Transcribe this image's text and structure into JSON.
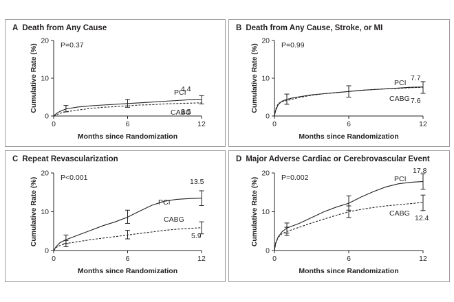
{
  "chart_data": [
    {
      "panel": "A",
      "type": "line",
      "title": "Death from Any Cause",
      "p_value": "P=0.37",
      "xlabel": "Months since Randomization",
      "ylabel": "Cumulative Rate (%)",
      "xlim": [
        0,
        12
      ],
      "ylim": [
        0,
        20
      ],
      "xticks": [
        "0",
        "6",
        "12"
      ],
      "yticks": [
        "0",
        "10",
        "20"
      ],
      "series": [
        {
          "name": "PCI",
          "style": "solid",
          "end_label": "4.4",
          "x": [
            0,
            0.2,
            0.5,
            1,
            2,
            3,
            4,
            5,
            6,
            7,
            8,
            9,
            10,
            11,
            12
          ],
          "y": [
            0,
            0.6,
            1.2,
            1.9,
            2.4,
            2.7,
            2.9,
            3.1,
            3.3,
            3.5,
            3.7,
            3.9,
            4.1,
            4.3,
            4.4
          ],
          "error_bars": [
            {
              "x": 1,
              "low": 1.1,
              "high": 2.8
            },
            {
              "x": 6,
              "low": 2.3,
              "high": 4.4
            },
            {
              "x": 12,
              "low": 3.2,
              "high": 5.4
            }
          ]
        },
        {
          "name": "CABG",
          "style": "dashed",
          "end_label": "3.5",
          "x": [
            0,
            0.2,
            0.5,
            1,
            2,
            3,
            4,
            5,
            6,
            7,
            8,
            9,
            10,
            11,
            12
          ],
          "y": [
            0,
            0.3,
            0.7,
            1.1,
            1.6,
            2.0,
            2.3,
            2.5,
            2.7,
            2.9,
            3.0,
            3.2,
            3.3,
            3.4,
            3.5
          ],
          "error_bars": []
        }
      ]
    },
    {
      "panel": "B",
      "type": "line",
      "title": "Death from Any Cause, Stroke, or MI",
      "p_value": "P=0.99",
      "xlabel": "Months since Randomization",
      "ylabel": "Cumulative Rate (%)",
      "xlim": [
        0,
        12
      ],
      "ylim": [
        0,
        20
      ],
      "xticks": [
        "0",
        "6",
        "12"
      ],
      "yticks": [
        "0",
        "10",
        "20"
      ],
      "series": [
        {
          "name": "PCI",
          "style": "solid",
          "end_label": "7.7",
          "x": [
            0,
            0.1,
            0.3,
            0.6,
            1,
            1.5,
            2,
            3,
            4,
            5,
            6,
            7,
            8,
            9,
            10,
            11,
            12
          ],
          "y": [
            0,
            1.5,
            3.0,
            3.9,
            4.4,
            4.8,
            5.1,
            5.6,
            5.9,
            6.2,
            6.5,
            6.8,
            7.0,
            7.2,
            7.4,
            7.6,
            7.7
          ],
          "error_bars": [
            {
              "x": 1,
              "low": 3.1,
              "high": 5.8
            },
            {
              "x": 6,
              "low": 5.0,
              "high": 8.0
            },
            {
              "x": 12,
              "low": 6.0,
              "high": 9.1
            }
          ]
        },
        {
          "name": "CABG",
          "style": "dashed",
          "end_label": "7.6",
          "x": [
            0,
            0.1,
            0.3,
            0.6,
            1,
            1.5,
            2,
            3,
            4,
            5,
            6,
            7,
            8,
            9,
            10,
            11,
            12
          ],
          "y": [
            0,
            1.8,
            3.3,
            3.8,
            4.1,
            4.5,
            4.9,
            5.5,
            5.9,
            6.2,
            6.5,
            6.8,
            7.0,
            7.2,
            7.3,
            7.5,
            7.6
          ],
          "error_bars": []
        }
      ]
    },
    {
      "panel": "C",
      "type": "line",
      "title": "Repeat Revascularization",
      "p_value": "P<0.001",
      "xlabel": "Months since Randomization",
      "ylabel": "Cumulative Rate (%)",
      "xlim": [
        0,
        12
      ],
      "ylim": [
        0,
        20
      ],
      "xticks": [
        "0",
        "6",
        "12"
      ],
      "yticks": [
        "0",
        "10",
        "20"
      ],
      "series": [
        {
          "name": "PCI",
          "style": "solid",
          "end_label": "13.5",
          "x": [
            0,
            0.2,
            0.5,
            1,
            2,
            3,
            4,
            5,
            6,
            7,
            8,
            9,
            10,
            11,
            12
          ],
          "y": [
            0,
            1.0,
            2.0,
            2.8,
            4.0,
            5.2,
            6.4,
            7.4,
            8.6,
            10.2,
            11.7,
            12.7,
            13.2,
            13.4,
            13.5
          ],
          "error_bars": [
            {
              "x": 1,
              "low": 1.8,
              "high": 4.0
            },
            {
              "x": 6,
              "low": 7.0,
              "high": 10.4
            },
            {
              "x": 12,
              "low": 11.6,
              "high": 15.4
            }
          ]
        },
        {
          "name": "CABG",
          "style": "dashed",
          "end_label": "5.9",
          "x": [
            0,
            0.2,
            0.5,
            1,
            2,
            3,
            4,
            5,
            6,
            7,
            8,
            9,
            10,
            11,
            12
          ],
          "y": [
            0,
            0.8,
            1.3,
            1.8,
            2.3,
            2.8,
            3.2,
            3.6,
            4.0,
            4.4,
            4.8,
            5.2,
            5.5,
            5.7,
            5.9
          ],
          "error_bars": [
            {
              "x": 1,
              "low": 1.0,
              "high": 2.6
            },
            {
              "x": 6,
              "low": 3.0,
              "high": 5.2
            },
            {
              "x": 12,
              "low": 4.3,
              "high": 7.4
            }
          ]
        }
      ]
    },
    {
      "panel": "D",
      "type": "line",
      "title": "Major Adverse Cardiac or Cerebrovascular Event",
      "p_value": "P=0.002",
      "xlabel": "Months since Randomization",
      "ylabel": "Cumulative Rate (%)",
      "xlim": [
        0,
        12
      ],
      "ylim": [
        0,
        20
      ],
      "xticks": [
        "0",
        "6",
        "12"
      ],
      "yticks": [
        "0",
        "10",
        "20"
      ],
      "series": [
        {
          "name": "PCI",
          "style": "solid",
          "end_label": "17.8",
          "x": [
            0,
            0.1,
            0.3,
            0.6,
            1,
            2,
            3,
            4,
            5,
            6,
            7,
            8,
            9,
            10,
            11,
            12
          ],
          "y": [
            0,
            2.0,
            3.5,
            4.8,
            5.8,
            7.0,
            8.5,
            10.0,
            11.2,
            12.2,
            13.8,
            15.2,
            16.4,
            17.2,
            17.6,
            17.8
          ],
          "error_bars": [
            {
              "x": 1,
              "low": 4.5,
              "high": 7.1
            },
            {
              "x": 6,
              "low": 10.4,
              "high": 14.1
            },
            {
              "x": 12,
              "low": 15.8,
              "high": 19.8
            }
          ]
        },
        {
          "name": "CABG",
          "style": "dashed",
          "end_label": "12.4",
          "x": [
            0,
            0.1,
            0.3,
            0.6,
            1,
            2,
            3,
            4,
            5,
            6,
            7,
            8,
            9,
            10,
            11,
            12
          ],
          "y": [
            0,
            1.8,
            3.4,
            4.3,
            4.9,
            6.0,
            7.1,
            8.1,
            9.1,
            10.0,
            10.6,
            11.1,
            11.5,
            11.8,
            12.1,
            12.4
          ],
          "error_bars": [
            {
              "x": 1,
              "low": 3.9,
              "high": 6.0
            },
            {
              "x": 6,
              "low": 8.5,
              "high": 11.5
            },
            {
              "x": 12,
              "low": 10.3,
              "high": 14.3
            }
          ]
        }
      ]
    }
  ]
}
